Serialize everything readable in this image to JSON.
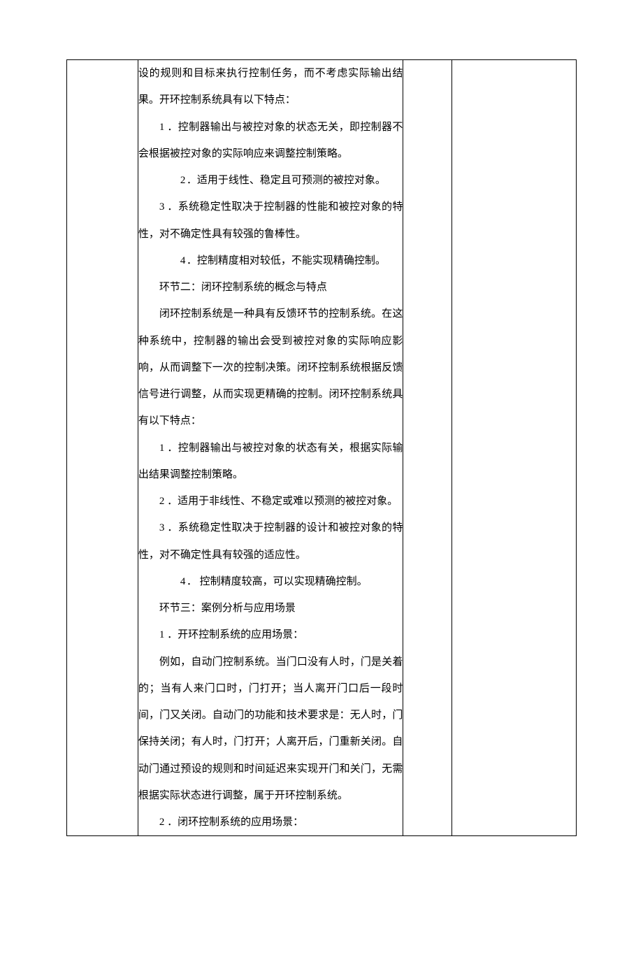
{
  "col2": {
    "p1": "设的规则和目标来执行控制任务，而不考虑实际输出结果。开环控制系统具有以下特点：",
    "item1_1": "1 ．控制器输出与被控对象的状态无关，即控制器不会根据被控对象的实际响应来调整控制策略。",
    "item1_2_num": "2",
    "item1_2_txt": "．适用于线性、稳定且可预测的被控对象。",
    "item1_3": "3 ．系统稳定性取决于控制器的性能和被控对象的特性，对不确定性具有较强的鲁棒性。",
    "item1_4_num": "4",
    "item1_4_txt": "．控制精度相对较低，不能实现精确控制。",
    "section2_title": "环节二：闭环控制系统的概念与特点",
    "p2": "闭环控制系统是一种具有反馈环节的控制系统。在这种系统中，控制器的输出会受到被控对象的实际响应影响，从而调整下一次的控制决策。闭环控制系统根据反馈信号进行调整，从而实现更精确的控制。闭环控制系统具有以下特点：",
    "item2_1": "1 ．控制器输出与被控对象的状态有关，根据实际输出结果调整控制策略。",
    "item2_2": "2 ．适用于非线性、不稳定或难以预测的被控对象。",
    "item2_3": "3 ．系统稳定性取决于控制器的设计和被控对象的特性，对不确定性具有较强的适应性。",
    "item2_4_num": "4",
    "item2_4_txt": "． 控制精度较高，可以实现精确控制。",
    "section3_title": "环节三：案例分析与应用场景",
    "item3_1": "1 ．开环控制系统的应用场景：",
    "p3": "例如，自动门控制系统。当门口没有人时，门是关着的；当有人来门口时，门打开；当人离开门口后一段时间，门又关闭。自动门的功能和技术要求是：无人时，门保持关闭；有人时，门打开；人离开后，门重新关闭。自动门通过预设的规则和时间延迟来实现开门和关门，无需根据实际状态进行调整，属于开环控制系统。",
    "item3_2": "2 ．闭环控制系统的应用场景："
  }
}
